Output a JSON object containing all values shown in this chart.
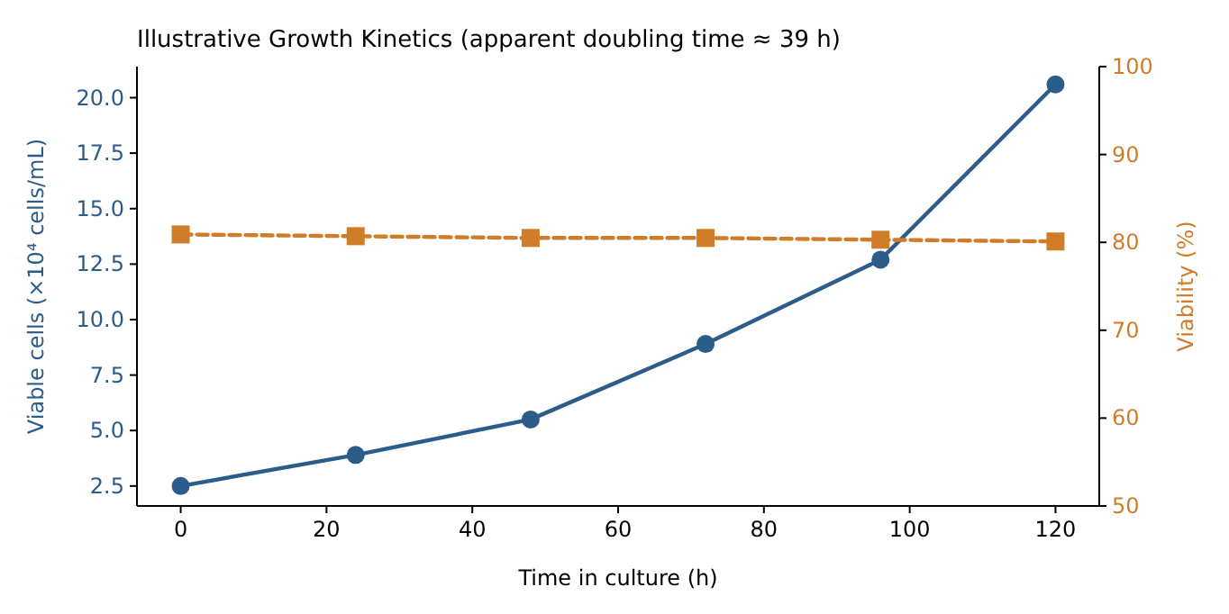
{
  "chart_data": {
    "type": "line",
    "title": "Illustrative Growth Kinetics (apparent doubling time ≈ 39 h)",
    "xlabel": "Time in culture (h)",
    "ylabel": "Viable cells (×10⁴ cells/mL)",
    "y2label": "Viability (%)",
    "x": [
      0,
      24,
      48,
      72,
      96,
      120
    ],
    "series": [
      {
        "color": "#2c5d8a",
        "values": [
          2.5,
          3.9,
          5.5,
          8.9,
          12.7,
          20.6
        ],
        "marker": "circle",
        "line_style": "solid"
      },
      {
        "color": "#d07d2a",
        "values": [
          80.9,
          80.7,
          80.5,
          80.5,
          80.3,
          80.1
        ],
        "axis": "y2",
        "marker": "square",
        "line_style": "dashed"
      }
    ],
    "xlim": [
      -6,
      126
    ],
    "xticks": [
      0,
      20,
      40,
      60,
      80,
      100,
      120
    ],
    "ylim": [
      1.6,
      21.4
    ],
    "yticks": [
      {
        "value": 2.5,
        "label": "2.5"
      },
      {
        "value": 5,
        "label": "5.0"
      },
      {
        "value": 7.5,
        "label": "7.5"
      },
      {
        "value": 10,
        "label": "10.0"
      },
      {
        "value": 12.5,
        "label": "12.5"
      },
      {
        "value": 15,
        "label": "15.0"
      },
      {
        "value": 17.5,
        "label": "17.5"
      },
      {
        "value": 20,
        "label": "20.0"
      }
    ],
    "y2lim": [
      50,
      100
    ],
    "y2ticks": [
      50,
      60,
      70,
      80,
      90,
      100
    ]
  }
}
